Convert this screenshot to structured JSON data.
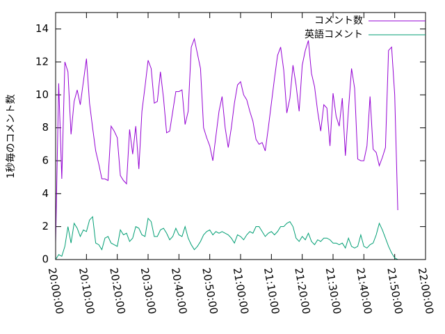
{
  "chart_data": {
    "type": "line",
    "ylabel": "1秒毎のコメント数",
    "x": [
      0,
      1,
      2,
      3,
      4,
      5,
      6,
      7,
      8,
      9,
      10,
      11,
      12,
      13,
      14,
      15,
      16,
      17,
      18,
      19,
      20,
      21,
      22,
      23,
      24,
      25,
      26,
      27,
      28,
      29,
      30,
      31,
      32,
      33,
      34,
      35,
      36,
      37,
      38,
      39,
      40,
      41,
      42,
      43,
      44,
      45,
      46,
      47,
      48,
      49,
      50,
      51,
      52,
      53,
      54,
      55,
      56,
      57,
      58,
      59,
      60,
      61,
      62,
      63,
      64,
      65,
      66,
      67,
      68,
      69,
      70,
      71,
      72,
      73,
      74,
      75,
      76,
      77,
      78,
      79,
      80,
      81,
      82,
      83,
      84,
      85,
      86,
      87,
      88,
      89,
      90,
      91,
      92,
      93,
      94,
      95,
      96,
      97,
      98,
      99,
      100,
      101,
      102,
      103,
      104,
      105,
      106,
      107,
      108,
      109,
      110,
      111
    ],
    "series": [
      {
        "name": "コメント数",
        "color": "#9400d3",
        "values": [
          1.0,
          10.7,
          4.9,
          12.0,
          11.4,
          7.6,
          9.6,
          10.3,
          9.4,
          10.8,
          12.2,
          9.5,
          8.0,
          6.6,
          5.8,
          4.9,
          4.9,
          4.8,
          8.1,
          7.8,
          7.4,
          5.1,
          4.8,
          4.6,
          7.9,
          6.4,
          8.1,
          5.5,
          9.0,
          10.5,
          12.1,
          11.6,
          9.5,
          9.6,
          11.4,
          9.8,
          7.7,
          7.8,
          9.0,
          10.2,
          10.2,
          10.3,
          8.2,
          9.0,
          12.9,
          13.4,
          12.5,
          11.6,
          8.0,
          7.4,
          6.9,
          6.0,
          7.5,
          9.0,
          9.9,
          8.0,
          6.8,
          8.0,
          9.5,
          10.6,
          10.8,
          10.0,
          9.7,
          9.0,
          8.4,
          7.3,
          7.0,
          7.1,
          6.6,
          8.0,
          9.5,
          11.0,
          12.4,
          12.9,
          11.5,
          8.9,
          9.8,
          11.8,
          10.6,
          9.0,
          11.8,
          12.7,
          13.3,
          11.3,
          10.5,
          9.0,
          7.8,
          9.4,
          9.2,
          6.9,
          10.1,
          8.7,
          8.1,
          9.8,
          6.3,
          9.1,
          11.6,
          10.4,
          6.1,
          6.0,
          6.0,
          6.9,
          9.9,
          6.7,
          6.5,
          5.7,
          6.2,
          6.8,
          12.7,
          12.9,
          10.0,
          3.0
        ]
      },
      {
        "name": "英語コメント",
        "color": "#009e73",
        "values": [
          0.0,
          0.3,
          0.2,
          0.8,
          2.0,
          1.0,
          2.2,
          1.9,
          1.4,
          1.8,
          1.7,
          2.4,
          2.6,
          1.0,
          0.9,
          0.6,
          1.3,
          1.4,
          1.0,
          0.9,
          0.8,
          1.8,
          1.5,
          1.6,
          1.1,
          1.3,
          2.0,
          1.9,
          1.5,
          1.4,
          2.5,
          2.3,
          1.4,
          1.4,
          1.8,
          1.9,
          1.6,
          1.2,
          1.4,
          1.9,
          1.5,
          1.4,
          2.0,
          1.3,
          0.9,
          0.6,
          0.8,
          1.1,
          1.5,
          1.7,
          1.8,
          1.5,
          1.7,
          1.6,
          1.7,
          1.6,
          1.5,
          1.3,
          1.0,
          1.5,
          1.4,
          1.2,
          1.5,
          1.7,
          1.6,
          2.0,
          2.0,
          1.7,
          1.4,
          1.6,
          1.7,
          1.5,
          1.7,
          2.0,
          2.0,
          2.2,
          2.3,
          2.0,
          1.3,
          1.1,
          1.4,
          1.2,
          1.6,
          1.1,
          0.9,
          1.2,
          1.1,
          1.3,
          1.3,
          1.2,
          1.0,
          1.0,
          0.9,
          1.0,
          0.7,
          1.3,
          0.8,
          0.7,
          0.8,
          1.5,
          0.8,
          0.7,
          0.9,
          1.0,
          1.5,
          2.2,
          1.8,
          1.3,
          0.8,
          0.4,
          0.1,
          0.0
        ]
      }
    ],
    "xlim": [
      0,
      120
    ],
    "xticks": [
      {
        "value": 0,
        "label": "20:00:00"
      },
      {
        "value": 10,
        "label": "20:10:00"
      },
      {
        "value": 20,
        "label": "20:20:00"
      },
      {
        "value": 30,
        "label": "20:30:00"
      },
      {
        "value": 40,
        "label": "20:40:00"
      },
      {
        "value": 50,
        "label": "20:50:00"
      },
      {
        "value": 60,
        "label": "21:00:00"
      },
      {
        "value": 70,
        "label": "21:10:00"
      },
      {
        "value": 80,
        "label": "21:20:00"
      },
      {
        "value": 90,
        "label": "21:30:00"
      },
      {
        "value": 100,
        "label": "21:40:00"
      },
      {
        "value": 110,
        "label": "21:50:00"
      },
      {
        "value": 120,
        "label": "22:00:00"
      }
    ],
    "ylim": [
      0,
      15
    ],
    "yticks": [
      0,
      2,
      4,
      6,
      8,
      10,
      12,
      14
    ],
    "legend": "top-right"
  }
}
